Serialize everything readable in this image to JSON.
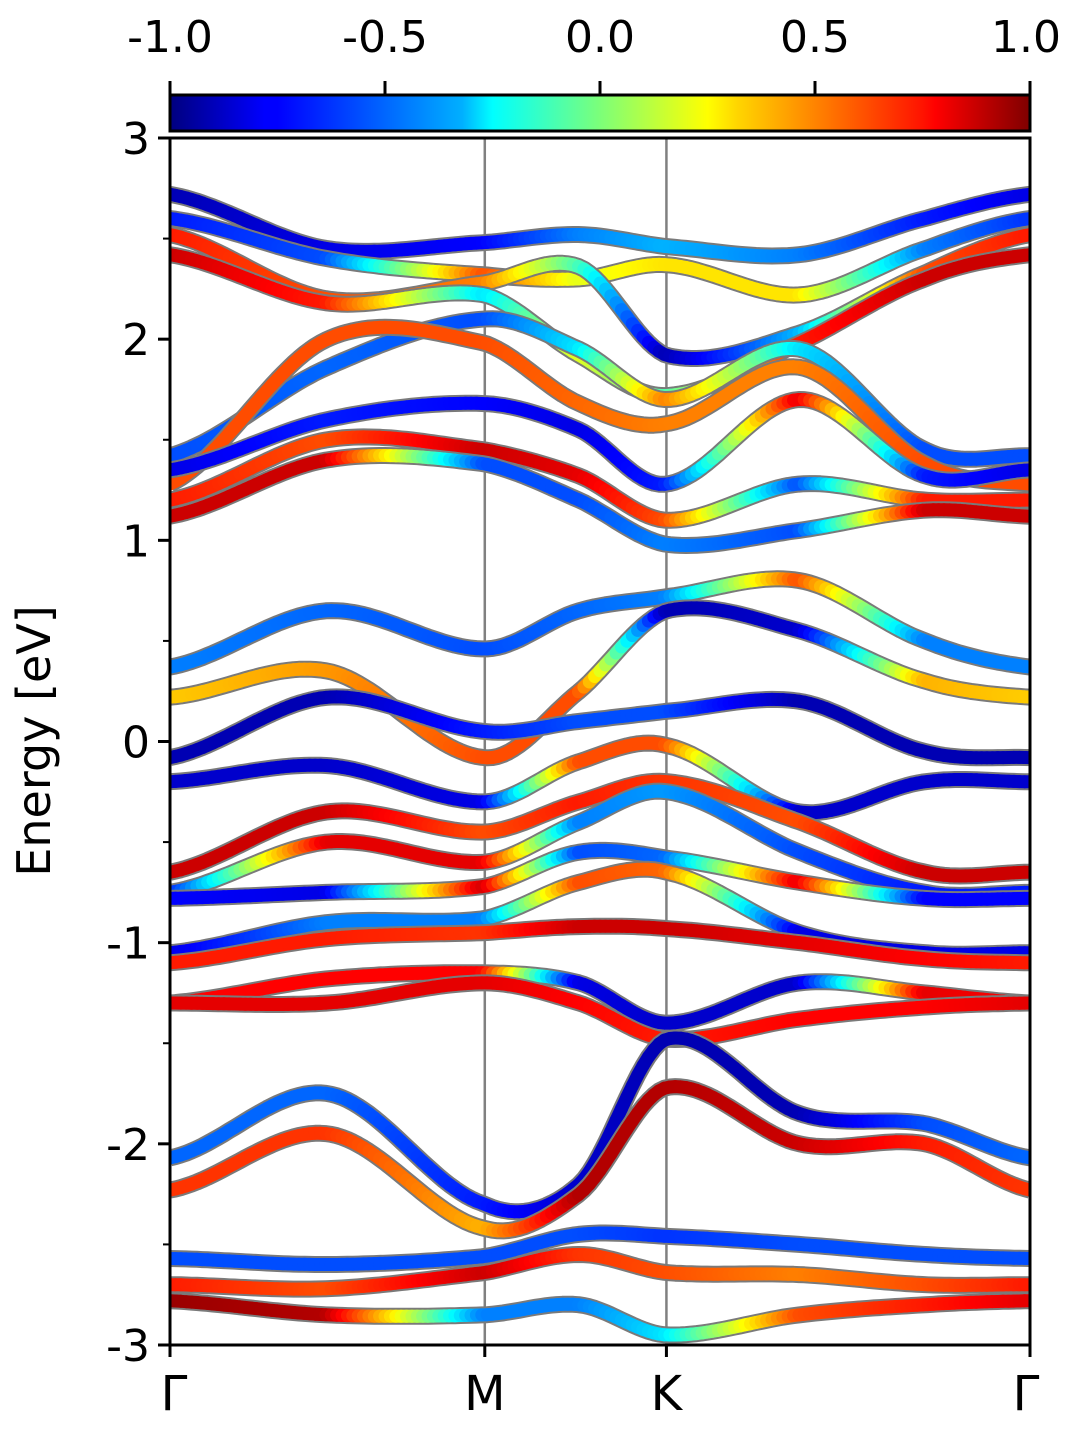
{
  "chart_data": {
    "type": "line",
    "title": "",
    "ylabel": "Energy [eV]",
    "xlabel": "",
    "ylim": [
      -3,
      3
    ],
    "yticks": [
      -3,
      -2,
      -1,
      0,
      1,
      2,
      3
    ],
    "ytick_labels": [
      "-3",
      "-2",
      "-1",
      "0",
      "1",
      "2",
      "3"
    ],
    "x_path_labels": [
      "Γ",
      "M",
      "K",
      "Γ"
    ],
    "x_path_positions": [
      0,
      1,
      1.577,
      2.732
    ],
    "xlim": [
      0,
      2.732
    ],
    "colorbar": {
      "range": [
        -1.0,
        1.0
      ],
      "ticks": [
        -1.0,
        -0.5,
        0.0,
        0.5,
        1.0
      ],
      "tick_labels": [
        "-1.0",
        "-0.5",
        "0.0",
        "0.5",
        "1.0"
      ],
      "colormap": "jet",
      "placement": "top"
    },
    "series": [
      {
        "x": [
          0,
          0.5,
          1.0,
          1.3,
          1.577,
          2.0,
          2.4,
          2.732
        ],
        "values": [
          2.72,
          2.45,
          2.48,
          2.52,
          2.46,
          2.42,
          2.6,
          2.72
        ],
        "weights": [
          -0.9,
          -0.8,
          -0.75,
          -0.5,
          -0.4,
          -0.5,
          -0.7,
          -0.8
        ]
      },
      {
        "x": [
          0,
          0.5,
          1.0,
          1.3,
          1.577,
          2.0,
          2.4,
          2.732
        ],
        "values": [
          2.6,
          2.4,
          2.32,
          2.3,
          2.37,
          2.22,
          2.45,
          2.6
        ],
        "weights": [
          -0.7,
          -0.6,
          0.6,
          0.2,
          0.3,
          0.3,
          -0.5,
          -0.65
        ]
      },
      {
        "x": [
          0,
          0.5,
          1.0,
          1.3,
          1.577,
          2.0,
          2.4,
          2.732
        ],
        "values": [
          2.52,
          2.2,
          2.28,
          2.36,
          1.92,
          2.03,
          2.33,
          2.52
        ],
        "weights": [
          0.7,
          0.6,
          0.5,
          -0.1,
          -0.9,
          -0.4,
          0.6,
          0.7
        ]
      },
      {
        "x": [
          0,
          0.5,
          1.0,
          1.3,
          1.577,
          2.0,
          2.4,
          2.732
        ],
        "values": [
          2.42,
          2.18,
          2.22,
          1.92,
          1.72,
          1.98,
          2.3,
          2.42
        ],
        "weights": [
          0.85,
          0.7,
          -0.3,
          0.2,
          -0.1,
          0.7,
          0.85,
          0.85
        ]
      },
      {
        "x": [
          0,
          0.5,
          1.0,
          1.3,
          1.577,
          2.0,
          2.4,
          2.732
        ],
        "values": [
          1.42,
          1.86,
          2.1,
          1.95,
          1.7,
          1.95,
          1.45,
          1.42
        ],
        "weights": [
          -0.6,
          -0.55,
          -0.6,
          -0.3,
          0.5,
          -0.3,
          -0.6,
          -0.6
        ]
      },
      {
        "x": [
          0,
          0.5,
          1.0,
          1.3,
          1.577,
          2.0,
          2.4,
          2.732
        ],
        "values": [
          1.28,
          2.0,
          1.98,
          1.68,
          1.58,
          1.86,
          1.38,
          1.28
        ],
        "weights": [
          0.6,
          0.6,
          0.6,
          0.55,
          0.5,
          0.5,
          0.6,
          0.6
        ]
      },
      {
        "x": [
          0,
          0.5,
          1.0,
          1.3,
          1.577,
          2.0,
          2.4,
          2.732
        ],
        "values": [
          1.35,
          1.6,
          1.68,
          1.55,
          1.28,
          1.7,
          1.32,
          1.35
        ],
        "weights": [
          -0.8,
          -0.7,
          -0.75,
          -0.8,
          -0.7,
          0.8,
          -0.7,
          -0.8
        ]
      },
      {
        "x": [
          0,
          0.5,
          1.0,
          1.3,
          1.577,
          2.0,
          2.4,
          2.732
        ],
        "values": [
          1.2,
          1.5,
          1.45,
          1.32,
          1.1,
          1.28,
          1.2,
          1.2
        ],
        "weights": [
          0.7,
          0.6,
          0.85,
          0.8,
          0.6,
          -0.6,
          0.7,
          0.7
        ]
      },
      {
        "x": [
          0,
          0.5,
          1.0,
          1.3,
          1.577,
          2.0,
          2.4,
          2.732
        ],
        "values": [
          1.12,
          1.4,
          1.38,
          1.2,
          0.98,
          1.05,
          1.15,
          1.12
        ],
        "weights": [
          0.85,
          0.85,
          -0.6,
          -0.6,
          -0.5,
          -0.6,
          0.85,
          0.85
        ]
      },
      {
        "x": [
          0,
          0.5,
          1.0,
          1.3,
          1.577,
          2.0,
          2.4,
          2.732
        ],
        "values": [
          0.37,
          0.65,
          0.46,
          0.65,
          0.72,
          0.8,
          0.5,
          0.37
        ],
        "weights": [
          -0.5,
          -0.55,
          -0.6,
          -0.55,
          -0.5,
          0.6,
          -0.5,
          -0.5
        ]
      },
      {
        "x": [
          0,
          0.5,
          1.0,
          1.3,
          1.577,
          2.0,
          2.4,
          2.732
        ],
        "values": [
          0.22,
          0.35,
          -0.08,
          0.25,
          0.65,
          0.55,
          0.3,
          0.22
        ],
        "weights": [
          0.35,
          0.45,
          0.6,
          0.6,
          -0.9,
          -0.85,
          0.4,
          0.35
        ]
      },
      {
        "x": [
          0,
          0.5,
          1.0,
          1.3,
          1.577,
          2.0,
          2.4,
          2.732
        ],
        "values": [
          -0.08,
          0.22,
          0.05,
          0.1,
          0.15,
          0.2,
          -0.05,
          -0.08
        ],
        "weights": [
          -0.9,
          -0.9,
          -0.7,
          -0.6,
          -0.6,
          -0.9,
          -0.9,
          -0.9
        ]
      },
      {
        "x": [
          0,
          0.5,
          1.0,
          1.3,
          1.577,
          2.0,
          2.4,
          2.732
        ],
        "values": [
          -0.2,
          -0.12,
          -0.3,
          -0.1,
          -0.02,
          -0.35,
          -0.2,
          -0.2
        ],
        "weights": [
          -0.85,
          -0.85,
          -0.8,
          0.6,
          0.6,
          -0.85,
          -0.85,
          -0.85
        ]
      },
      {
        "x": [
          0,
          0.5,
          1.0,
          1.3,
          1.577,
          2.0,
          2.4,
          2.732
        ],
        "values": [
          -0.65,
          -0.35,
          -0.45,
          -0.3,
          -0.2,
          -0.4,
          -0.65,
          -0.65
        ],
        "weights": [
          0.85,
          0.85,
          0.6,
          0.7,
          0.65,
          0.6,
          0.85,
          0.85
        ]
      },
      {
        "x": [
          0,
          0.5,
          1.0,
          1.3,
          1.577,
          2.0,
          2.4,
          2.732
        ],
        "values": [
          -0.75,
          -0.5,
          -0.6,
          -0.4,
          -0.25,
          -0.55,
          -0.75,
          -0.75
        ],
        "weights": [
          -0.7,
          0.8,
          0.8,
          -0.5,
          -0.45,
          -0.6,
          -0.7,
          -0.7
        ]
      },
      {
        "x": [
          0,
          0.5,
          1.0,
          1.3,
          1.577,
          2.0,
          2.4,
          2.732
        ],
        "values": [
          -0.78,
          -0.75,
          -0.72,
          -0.55,
          -0.58,
          -0.7,
          -0.78,
          -0.78
        ],
        "weights": [
          -0.75,
          -0.8,
          0.85,
          -0.6,
          -0.55,
          0.8,
          -0.75,
          -0.75
        ]
      },
      {
        "x": [
          0,
          0.5,
          1.0,
          1.3,
          1.577,
          2.0,
          2.4,
          2.732
        ],
        "values": [
          -1.05,
          -0.9,
          -0.88,
          -0.7,
          -0.65,
          -0.95,
          -1.05,
          -1.05
        ],
        "weights": [
          -0.8,
          -0.5,
          -0.5,
          0.6,
          0.55,
          -0.8,
          -0.8,
          -0.8
        ]
      },
      {
        "x": [
          0,
          0.5,
          1.0,
          1.3,
          1.577,
          2.0,
          2.4,
          2.732
        ],
        "values": [
          -1.1,
          -0.98,
          -0.95,
          -0.92,
          -0.93,
          -1.0,
          -1.08,
          -1.1
        ],
        "weights": [
          0.7,
          0.7,
          0.65,
          0.85,
          0.85,
          0.8,
          0.75,
          0.7
        ]
      },
      {
        "x": [
          0,
          0.5,
          1.0,
          1.3,
          1.577,
          2.0,
          2.4,
          2.732
        ],
        "values": [
          -1.3,
          -1.18,
          -1.15,
          -1.2,
          -1.4,
          -1.2,
          -1.25,
          -1.3
        ],
        "weights": [
          0.75,
          0.75,
          0.75,
          -0.8,
          -0.85,
          -0.85,
          0.8,
          0.75
        ]
      },
      {
        "x": [
          0,
          0.5,
          1.0,
          1.3,
          1.577,
          2.0,
          2.4,
          2.732
        ],
        "values": [
          -1.3,
          -1.3,
          -1.2,
          -1.3,
          -1.48,
          -1.38,
          -1.32,
          -1.3
        ],
        "weights": [
          0.8,
          0.8,
          0.8,
          0.75,
          0.7,
          0.75,
          0.75,
          0.8
        ]
      },
      {
        "x": [
          0,
          0.5,
          1.0,
          1.3,
          1.577,
          2.0,
          2.4,
          2.732
        ],
        "values": [
          -2.07,
          -1.75,
          -2.3,
          -2.2,
          -1.48,
          -1.85,
          -1.9,
          -2.07
        ],
        "weights": [
          -0.55,
          -0.55,
          -0.7,
          -0.85,
          -0.9,
          -0.9,
          -0.6,
          -0.55
        ]
      },
      {
        "x": [
          0,
          0.5,
          1.0,
          1.3,
          1.577,
          2.0,
          2.4,
          2.732
        ],
        "values": [
          -2.23,
          -1.95,
          -2.42,
          -2.25,
          -1.72,
          -2.0,
          -2.0,
          -2.23
        ],
        "weights": [
          0.65,
          0.65,
          0.4,
          0.9,
          0.9,
          0.85,
          0.7,
          0.65
        ]
      },
      {
        "x": [
          0,
          0.5,
          1.0,
          1.3,
          1.577,
          2.0,
          2.4,
          2.732
        ],
        "values": [
          -2.57,
          -2.6,
          -2.56,
          -2.45,
          -2.46,
          -2.5,
          -2.55,
          -2.57
        ],
        "weights": [
          -0.6,
          -0.6,
          -0.6,
          -0.6,
          -0.65,
          -0.6,
          -0.6,
          -0.6
        ]
      },
      {
        "x": [
          0,
          0.5,
          1.0,
          1.3,
          1.577,
          2.0,
          2.4,
          2.732
        ],
        "values": [
          -2.7,
          -2.72,
          -2.64,
          -2.55,
          -2.64,
          -2.65,
          -2.7,
          -2.7
        ],
        "weights": [
          0.7,
          0.6,
          0.85,
          0.65,
          0.6,
          0.5,
          0.6,
          0.7
        ]
      },
      {
        "x": [
          0,
          0.5,
          1.0,
          1.3,
          1.577,
          2.0,
          2.4,
          2.732
        ],
        "values": [
          -2.78,
          -2.85,
          -2.85,
          -2.8,
          -2.95,
          -2.85,
          -2.8,
          -2.78
        ],
        "weights": [
          0.95,
          0.9,
          -0.5,
          -0.5,
          -0.3,
          0.6,
          0.7,
          0.8
        ]
      }
    ]
  }
}
